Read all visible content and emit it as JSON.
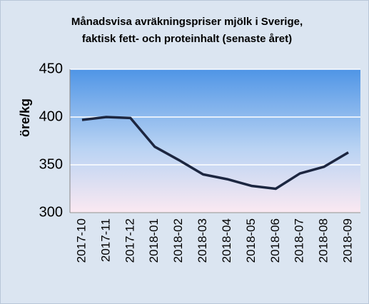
{
  "chart_data": {
    "type": "line",
    "title": [
      "Månadsvisa avräkningspriser mjölk i Sverige,",
      "faktisk fett- och proteinhalt (senaste året)"
    ],
    "ylabel": "öre/kg",
    "categories": [
      "2017-10",
      "2017-11",
      "2017-12",
      "2018-01",
      "2018-02",
      "2018-03",
      "2018-04",
      "2018-05",
      "2018-06",
      "2018-07",
      "2018-08",
      "2018-09"
    ],
    "series": [
      {
        "color": "#1c2640",
        "values": [
          397,
          400,
          399,
          369,
          355,
          340,
          335,
          328,
          325,
          341,
          348,
          363
        ]
      }
    ],
    "ylim": [
      300,
      450
    ],
    "yticks": [
      300,
      350,
      400,
      450
    ],
    "grid": true
  }
}
